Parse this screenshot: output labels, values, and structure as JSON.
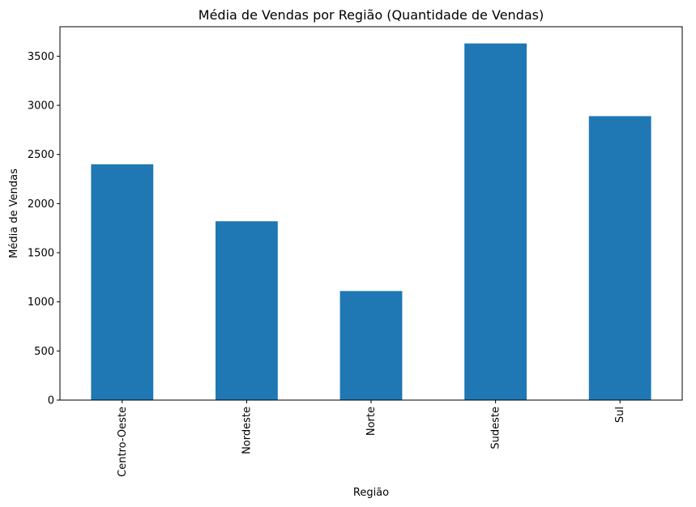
{
  "chart_data": {
    "type": "bar",
    "title": "Média de Vendas por Região (Quantidade de Vendas)",
    "xlabel": "Região",
    "ylabel": "Média de Vendas",
    "categories": [
      "Centro-Oeste",
      "Nordeste",
      "Norte",
      "Sudeste",
      "Sul"
    ],
    "values": [
      2400,
      1820,
      1110,
      3630,
      2890
    ],
    "ylim": [
      0,
      3800
    ],
    "yticks": [
      0,
      500,
      1000,
      1500,
      2000,
      2500,
      3000,
      3500
    ],
    "grid": false,
    "legend": "none",
    "bar_color": "#1f77b4"
  }
}
